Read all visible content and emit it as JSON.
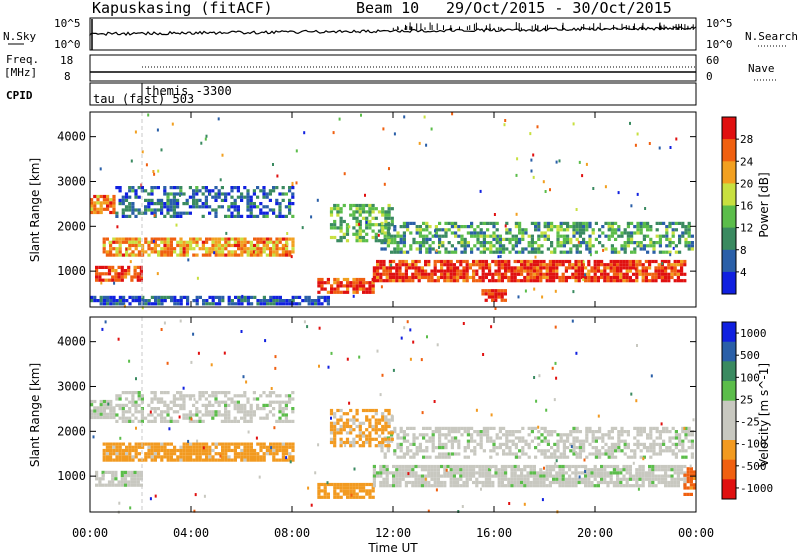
{
  "header": {
    "station": "Kapuskasing (fitACF)",
    "beam": "Beam 10",
    "date_range": "29/Oct/2015 - 30/Oct/2015"
  },
  "status_panels": {
    "nsky_label": "N.Sky",
    "nsky_ticks": [
      "10^5",
      "10^0"
    ],
    "nsearch_label": "N.Search",
    "nsearch_ticks": [
      "10^5",
      "10^0"
    ],
    "freq_label_line1": "Freq.",
    "freq_label_line2": "[MHz]",
    "freq_ticks": [
      "18",
      "8"
    ],
    "nave_label": "Nave",
    "nave_ticks": [
      "60",
      "0"
    ],
    "cpid_label": "CPID",
    "cpid_entries": [
      "tau (fast) 503",
      "themis -3300"
    ]
  },
  "colors": {
    "power_scale": [
      "#1020e0",
      "#2a5fa8",
      "#3a8a60",
      "#5bbd4a",
      "#c8e040",
      "#f2a020",
      "#f06010",
      "#e01010"
    ],
    "velocity_scale": [
      "#e01010",
      "#f06010",
      "#f29a20",
      "#c8c8c0",
      "#c8c8c0",
      "#5bbd4a",
      "#3a8a60",
      "#2a5fa8",
      "#1020e0"
    ]
  },
  "chart_data": [
    {
      "type": "heatmap",
      "panel": "power",
      "ylabel": "Slant Range [km]",
      "yticks": [
        "1000",
        "2000",
        "3000",
        "4000"
      ],
      "ylim": [
        200,
        4550
      ],
      "colorbar_label": "Power [dB]",
      "colorbar_ticks": [
        "4",
        "8",
        "12",
        "16",
        "20",
        "24",
        "28"
      ],
      "regions": [
        {
          "t": [
            0.2,
            2.0
          ],
          "r": [
            820,
            1120
          ],
          "v": 26
        },
        {
          "t": [
            0.5,
            8.0
          ],
          "r": [
            1350,
            1750
          ],
          "v": 22
        },
        {
          "t": [
            0.0,
            1.0
          ],
          "r": [
            2300,
            2700
          ],
          "v": 24
        },
        {
          "t": [
            1.0,
            8.0
          ],
          "r": [
            2200,
            2900
          ],
          "v": 8
        },
        {
          "t": [
            9.0,
            11.2
          ],
          "r": [
            550,
            850
          ],
          "v": 26
        },
        {
          "t": [
            11.2,
            23.5
          ],
          "r": [
            800,
            1250
          ],
          "v": 27
        },
        {
          "t": [
            11.5,
            23.8
          ],
          "r": [
            1400,
            2100
          ],
          "v": 12
        },
        {
          "t": [
            9.5,
            12.0
          ],
          "r": [
            1700,
            2500
          ],
          "v": 14
        },
        {
          "t": [
            15.5,
            16.5
          ],
          "r": [
            350,
            600
          ],
          "v": 28
        },
        {
          "t": [
            0.0,
            9.5
          ],
          "r": [
            250,
            450
          ],
          "v": 6
        }
      ]
    },
    {
      "type": "heatmap",
      "panel": "velocity",
      "ylabel": "Slant Range [km]",
      "xlabel": "Time UT",
      "xticks": [
        "00:00",
        "04:00",
        "08:00",
        "12:00",
        "16:00",
        "20:00",
        "00:00"
      ],
      "yticks": [
        "1000",
        "2000",
        "3000",
        "4000"
      ],
      "ylim": [
        200,
        4550
      ],
      "colorbar_label": "Velocity [m s^-1]",
      "colorbar_ticks": [
        "1000",
        "500",
        "100",
        "25",
        "-25",
        "-100",
        "-500",
        "-1000"
      ],
      "regions": [
        {
          "t": [
            0.2,
            2.0
          ],
          "r": [
            820,
            1120
          ],
          "v": 0
        },
        {
          "t": [
            0.5,
            8.0
          ],
          "r": [
            1350,
            1750
          ],
          "v": -150
        },
        {
          "t": [
            0.0,
            1.0
          ],
          "r": [
            2300,
            2700
          ],
          "v": 0
        },
        {
          "t": [
            1.0,
            8.0
          ],
          "r": [
            2200,
            2900
          ],
          "v": 0
        },
        {
          "t": [
            9.0,
            11.2
          ],
          "r": [
            550,
            850
          ],
          "v": -200
        },
        {
          "t": [
            11.2,
            23.5
          ],
          "r": [
            800,
            1250
          ],
          "v": 0
        },
        {
          "t": [
            11.5,
            23.8
          ],
          "r": [
            1400,
            2100
          ],
          "v": 0
        },
        {
          "t": [
            9.5,
            12.0
          ],
          "r": [
            1700,
            2500
          ],
          "v": -120
        },
        {
          "t": [
            23.5,
            24.0
          ],
          "r": [
            600,
            1200
          ],
          "v": -700
        }
      ]
    }
  ]
}
